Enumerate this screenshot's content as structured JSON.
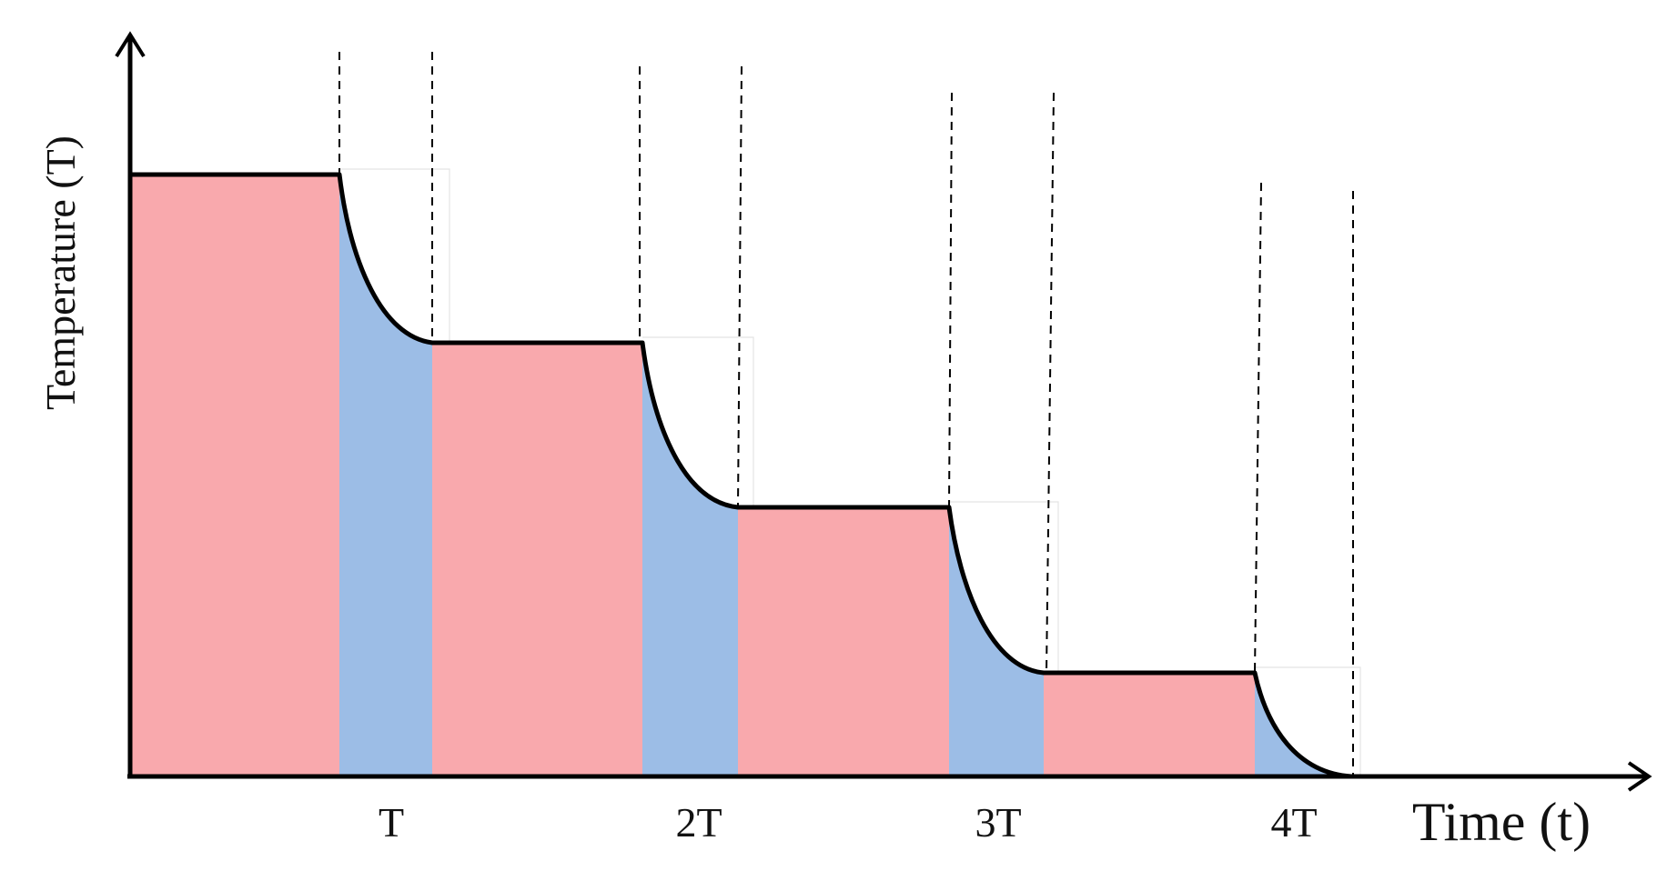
{
  "axes": {
    "y_label": "Temperature (T)",
    "x_label": "Time (t)"
  },
  "tick_labels": [
    "T",
    "2T",
    "3T",
    "4T"
  ],
  "colors": {
    "heating": "#f9a9ad",
    "cooling": "#9cbde6",
    "axis": "#000000",
    "curve": "#000000",
    "guide": "#000000"
  }
}
